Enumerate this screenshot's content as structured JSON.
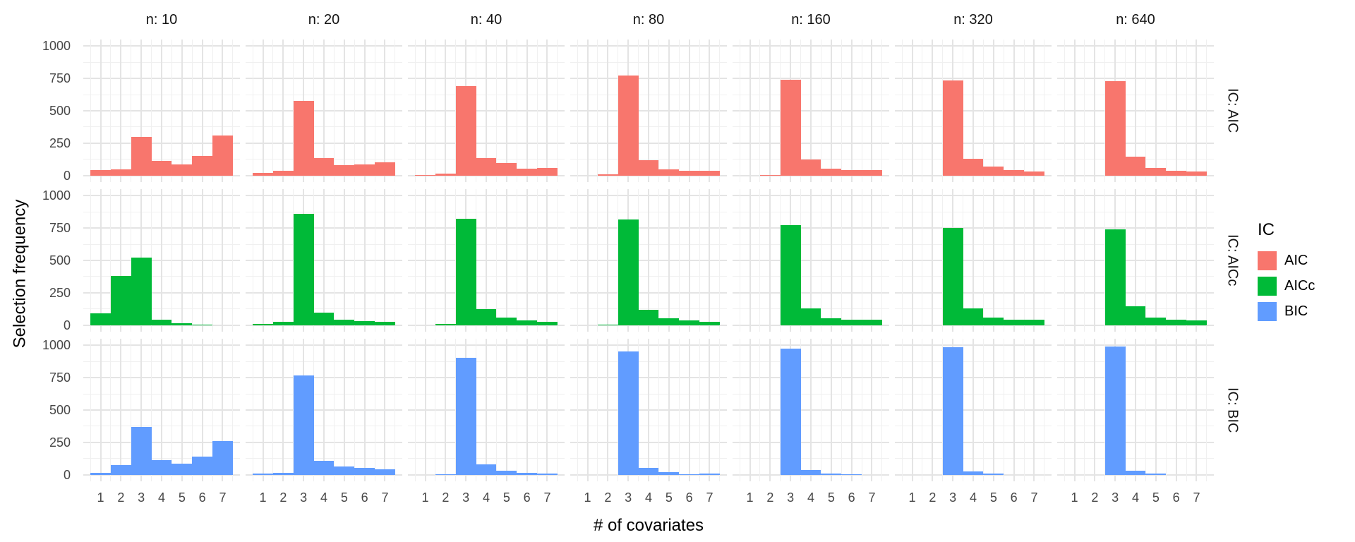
{
  "chart_data": {
    "type": "bar",
    "xlabel": "# of covariates",
    "ylabel": "Selection frequency",
    "x_categories": [
      1,
      2,
      3,
      4,
      5,
      6,
      7
    ],
    "y_ticks": [
      0,
      250,
      500,
      750,
      1000
    ],
    "y_minor_ticks": [
      125,
      375,
      625,
      875
    ],
    "ylim": [
      0,
      1000
    ],
    "grid": "on",
    "legend_position": "right",
    "facet_cols": [
      "n: 10",
      "n: 20",
      "n: 40",
      "n: 80",
      "n: 160",
      "n: 320",
      "n: 640"
    ],
    "facet_rows": [
      "IC: AIC",
      "IC: AICc",
      "IC: BIC"
    ],
    "legend": {
      "title": "IC",
      "entries": [
        {
          "label": "AIC",
          "color": "#F8766D"
        },
        {
          "label": "AICc",
          "color": "#00BA38"
        },
        {
          "label": "BIC",
          "color": "#619CFF"
        }
      ]
    },
    "series": [
      {
        "facet_row": "IC: AIC",
        "ic": "AIC",
        "color": "#F8766D",
        "panels": [
          {
            "facet_col": "n: 10",
            "values": [
              40,
              50,
              300,
              115,
              85,
              150,
              310
            ]
          },
          {
            "facet_col": "n: 20",
            "values": [
              20,
              35,
              575,
              135,
              80,
              85,
              105
            ]
          },
          {
            "facet_col": "n: 40",
            "values": [
              5,
              15,
              690,
              135,
              95,
              55,
              60
            ]
          },
          {
            "facet_col": "n: 80",
            "values": [
              0,
              10,
              770,
              120,
              50,
              35,
              35
            ]
          },
          {
            "facet_col": "n: 160",
            "values": [
              0,
              5,
              740,
              125,
              55,
              45,
              45
            ]
          },
          {
            "facet_col": "n: 320",
            "values": [
              0,
              0,
              735,
              130,
              70,
              45,
              30
            ]
          },
          {
            "facet_col": "n: 640",
            "values": [
              0,
              0,
              730,
              145,
              60,
              35,
              30
            ]
          }
        ]
      },
      {
        "facet_row": "IC: AICc",
        "ic": "AICc",
        "color": "#00BA38",
        "panels": [
          {
            "facet_col": "n: 10",
            "values": [
              90,
              380,
              520,
              40,
              15,
              5,
              0
            ]
          },
          {
            "facet_col": "n: 20",
            "values": [
              10,
              25,
              860,
              95,
              45,
              30,
              25
            ]
          },
          {
            "facet_col": "n: 40",
            "values": [
              0,
              10,
              820,
              125,
              60,
              35,
              25
            ]
          },
          {
            "facet_col": "n: 80",
            "values": [
              0,
              5,
              815,
              120,
              55,
              35,
              25
            ]
          },
          {
            "facet_col": "n: 160",
            "values": [
              0,
              0,
              770,
              130,
              55,
              45,
              40
            ]
          },
          {
            "facet_col": "n: 320",
            "values": [
              0,
              0,
              750,
              130,
              60,
              45,
              40
            ]
          },
          {
            "facet_col": "n: 640",
            "values": [
              0,
              0,
              740,
              145,
              60,
              40,
              35
            ]
          }
        ]
      },
      {
        "facet_row": "IC: BIC",
        "ic": "BIC",
        "color": "#619CFF",
        "panels": [
          {
            "facet_col": "n: 10",
            "values": [
              15,
              75,
              370,
              115,
              85,
              140,
              260
            ]
          },
          {
            "facet_col": "n: 20",
            "values": [
              10,
              15,
              765,
              110,
              65,
              55,
              45
            ]
          },
          {
            "facet_col": "n: 40",
            "values": [
              0,
              5,
              905,
              80,
              30,
              15,
              10
            ]
          },
          {
            "facet_col": "n: 80",
            "values": [
              0,
              0,
              950,
              55,
              20,
              5,
              10
            ]
          },
          {
            "facet_col": "n: 160",
            "values": [
              0,
              0,
              975,
              35,
              12,
              5,
              0
            ]
          },
          {
            "facet_col": "n: 320",
            "values": [
              0,
              0,
              985,
              25,
              12,
              0,
              0
            ]
          },
          {
            "facet_col": "n: 640",
            "values": [
              0,
              0,
              990,
              30,
              8,
              0,
              0
            ]
          }
        ]
      }
    ]
  }
}
